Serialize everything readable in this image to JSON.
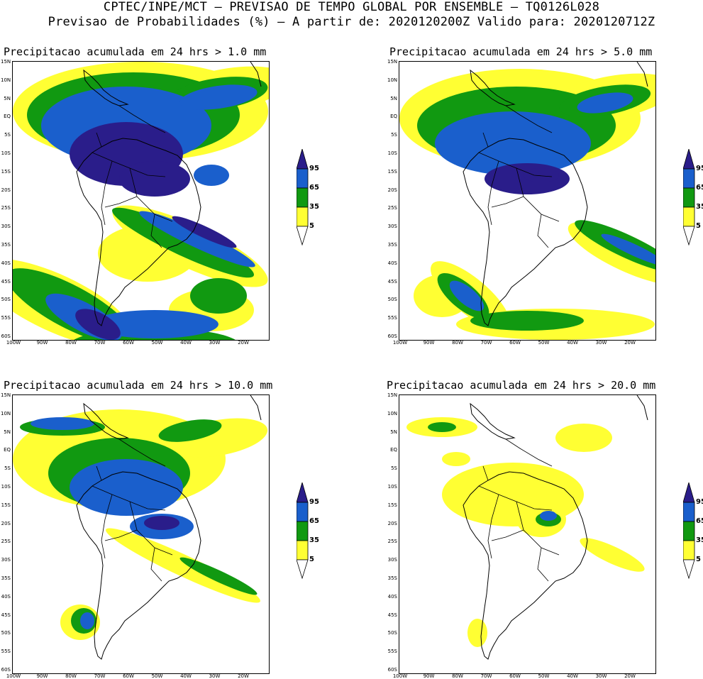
{
  "header": {
    "title_line1": "CPTEC/INPE/MCT – PREVISAO DE TEMPO GLOBAL POR ENSEMBLE – TQ0126L028",
    "title_line2": "Previsao de Probabilidades (%) –  A partir de: 2020120200Z  Valido para: 2020120712Z"
  },
  "axes": {
    "lat_labels": [
      "15N",
      "10N",
      "5N",
      "EQ",
      "5S",
      "10S",
      "15S",
      "20S",
      "25S",
      "30S",
      "35S",
      "40S",
      "45S",
      "50S",
      "55S",
      "60S"
    ],
    "lon_labels": [
      "100W",
      "90W",
      "80W",
      "70W",
      "60W",
      "50W",
      "40W",
      "30W",
      "20W"
    ]
  },
  "legend": {
    "levels": [
      "95",
      "65",
      "35",
      "5"
    ],
    "colors": {
      "band_5_35": "#ffff33",
      "band_35_65": "#119911",
      "band_65_95": "#1a5fcc",
      "band_95_up": "#2a1d8a"
    }
  },
  "panels": [
    {
      "title": "Precipitacao acumulada em 24 hrs > 1.0 mm"
    },
    {
      "title": "Precipitacao acumulada em 24 hrs > 5.0 mm"
    },
    {
      "title": "Precipitacao acumulada em 24 hrs > 10.0 mm"
    },
    {
      "title": "Precipitacao acumulada em 24 hrs > 20.0 mm"
    }
  ]
}
